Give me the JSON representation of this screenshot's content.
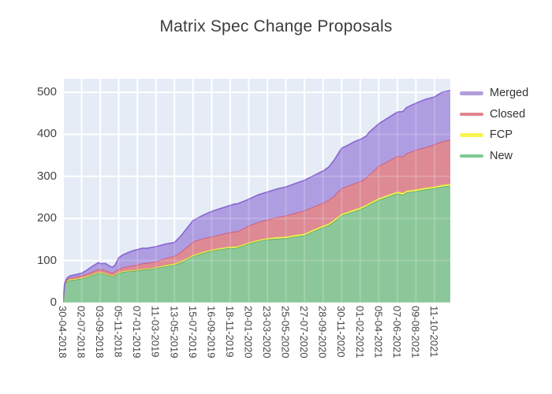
{
  "title": "Matrix Spec Change Proposals",
  "colors": {
    "figure_bg": "#ffffff",
    "plot_bg": "#e5ecf6",
    "grid": "#ffffff",
    "grid_over_fill": "rgba(255,255,255,0.18)",
    "tick_text": "#444444",
    "title_text": "#3c3c3c"
  },
  "legend": {
    "position": "right",
    "items": [
      {
        "label": "Merged",
        "swatch": "#b39ddc"
      },
      {
        "label": "Closed",
        "swatch": "#e0838f"
      },
      {
        "label": "FCP",
        "swatch": "#f7f450"
      },
      {
        "label": "New",
        "swatch": "#7ec893"
      }
    ]
  },
  "chart_data": {
    "type": "area",
    "stacked": true,
    "title": "Matrix Spec Change Proposals",
    "xlabel": "",
    "ylabel": "",
    "grid": true,
    "legend_position": "right",
    "y_ticks": [
      0,
      100,
      200,
      300,
      400,
      500
    ],
    "y_range": [
      0,
      532
    ],
    "x_range": [
      0,
      20.85
    ],
    "x_tick_positions": [
      0,
      1,
      2,
      3,
      4,
      5,
      6,
      7,
      8,
      9,
      10,
      11,
      12,
      13,
      14,
      15,
      16,
      17,
      18,
      19,
      20
    ],
    "x_tick_labels": [
      "30-04-2018",
      "02-07-2018",
      "03-09-2018",
      "05-11-2018",
      "07-01-2019",
      "11-03-2019",
      "13-05-2019",
      "15-07-2019",
      "16-09-2019",
      "18-11-2019",
      "20-01-2020",
      "23-03-2020",
      "25-05-2020",
      "27-07-2020",
      "28-09-2020",
      "30-11-2020",
      "01-02-2021",
      "05-04-2021",
      "07-06-2021",
      "09-08-2021",
      "11-10-2021"
    ],
    "x": [
      0,
      0.08,
      0.2,
      0.35,
      0.5,
      0.75,
      1.0,
      1.25,
      1.5,
      1.75,
      1.9,
      2.0,
      2.15,
      2.3,
      2.5,
      2.65,
      2.8,
      3.0,
      3.25,
      3.5,
      3.75,
      4.0,
      4.25,
      4.5,
      4.75,
      5.0,
      5.5,
      6.0,
      6.33,
      6.66,
      7.0,
      7.5,
      8.0,
      8.5,
      9.0,
      9.2,
      9.4,
      9.75,
      10.0,
      10.5,
      11.0,
      11.5,
      12.0,
      12.5,
      13.0,
      13.5,
      14.0,
      14.3,
      14.6,
      15.0,
      15.33,
      15.66,
      16.0,
      16.3,
      16.5,
      17.0,
      17.5,
      18.0,
      18.3,
      18.5,
      19.0,
      19.5,
      20.0,
      20.4,
      20.85
    ],
    "series": [
      {
        "name": "New",
        "fill": "#8cc79a",
        "line": "#56a56a",
        "values": [
          0,
          40,
          50,
          53,
          54,
          55,
          57,
          60,
          64,
          68,
          70,
          70,
          69,
          67,
          64,
          62,
          65,
          70,
          73,
          74,
          75,
          76,
          78,
          79,
          80,
          82,
          86,
          90,
          95,
          102,
          110,
          117,
          123,
          127,
          130,
          129,
          131,
          136,
          140,
          146,
          150,
          152,
          153,
          157,
          160,
          170,
          179,
          184,
          193,
          207,
          212,
          217,
          222,
          228,
          233,
          244,
          252,
          260,
          256,
          262,
          265,
          269,
          272,
          276,
          278
        ]
      },
      {
        "name": "FCP",
        "fill": "#f6f356",
        "line": "#e0e33b",
        "values": [
          0,
          1,
          2,
          2,
          2,
          2,
          2,
          2,
          2,
          2,
          2,
          2,
          2,
          2,
          2,
          2,
          2,
          2,
          2,
          2,
          2,
          2,
          2,
          2,
          2,
          2,
          3,
          3,
          3,
          3,
          3,
          3,
          3,
          3,
          3,
          4,
          3,
          3,
          3,
          3,
          3,
          4,
          4,
          4,
          4,
          4,
          4,
          4,
          4,
          4,
          4,
          4,
          4,
          4,
          4,
          4,
          4,
          4,
          5,
          4,
          4,
          4,
          4,
          4,
          4
        ]
      },
      {
        "name": "Closed",
        "fill": "#dd8a95",
        "line": "#cc5570",
        "values": [
          0,
          2,
          3,
          4,
          4,
          5,
          5,
          6,
          6,
          7,
          7,
          7,
          7,
          7,
          7,
          7,
          8,
          8,
          9,
          10,
          11,
          12,
          13,
          13,
          14,
          14,
          16,
          18,
          22,
          27,
          32,
          32,
          31,
          32,
          34,
          36,
          35,
          38,
          40,
          42,
          44,
          47,
          50,
          52,
          55,
          54,
          54,
          56,
          57,
          61,
          61,
          62,
          62,
          64,
          68,
          77,
          80,
          84,
          86,
          89,
          94,
          96,
          100,
          103,
          105
        ]
      },
      {
        "name": "Merged",
        "fill": "#af9de1",
        "line": "#8765d2",
        "values": [
          0,
          2,
          3,
          4,
          5,
          5,
          6,
          8,
          12,
          14,
          16,
          14,
          15,
          17,
          14,
          13,
          14,
          27,
          30,
          33,
          35,
          36,
          36,
          35,
          35,
          35,
          34,
          32,
          38,
          44,
          50,
          55,
          60,
          62,
          64,
          65,
          66,
          64,
          63,
          65,
          66,
          67,
          68,
          70,
          72,
          74,
          76,
          78,
          85,
          95,
          97,
          99,
          100,
          99,
          101,
          100,
          103,
          105,
          107,
          109,
          111,
          114,
          113,
          117,
          117
        ]
      }
    ]
  }
}
